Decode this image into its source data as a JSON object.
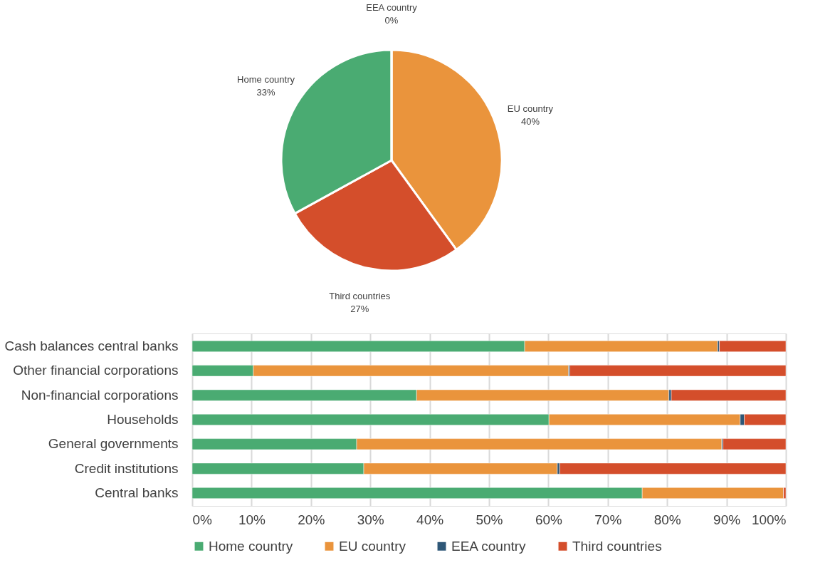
{
  "chart_data": [
    {
      "type": "pie",
      "categories": [
        "EU country",
        "Third countries",
        "Home country",
        "EEA country"
      ],
      "values": [
        40,
        27,
        33,
        0
      ],
      "value_labels": [
        "40%",
        "27%",
        "33%",
        "0%"
      ],
      "colors": [
        "#ea943c",
        "#d44e2b",
        "#4aab72",
        "#2e5777"
      ],
      "legend": false
    },
    {
      "type": "bar",
      "orientation": "horizontal",
      "stacked": true,
      "categories": [
        "Cash balances central banks",
        "Other financial corporations",
        "Non-financial corporations",
        "Households",
        "General governments",
        "Credit institutions",
        "Central banks"
      ],
      "series": [
        {
          "name": "Home country",
          "color": "#4aab72",
          "values": [
            56.0,
            10.3,
            37.8,
            60.1,
            27.7,
            28.9,
            75.8
          ]
        },
        {
          "name": "EU country",
          "color": "#ea943c",
          "values": [
            32.5,
            53.1,
            42.5,
            32.2,
            61.5,
            32.6,
            23.8
          ]
        },
        {
          "name": "EEA country",
          "color": "#2e5777",
          "values": [
            0.3,
            0.2,
            0.4,
            0.7,
            0.2,
            0.4,
            0
          ]
        },
        {
          "name": "Third countries",
          "color": "#d44e2b",
          "values": [
            11.2,
            36.4,
            19.3,
            7.0,
            10.6,
            38.1,
            0.4
          ]
        }
      ],
      "xlim": [
        0,
        100
      ],
      "xticks": [
        {
          "value": 0,
          "label": "0%"
        },
        {
          "value": 10,
          "label": "10%"
        },
        {
          "value": 20,
          "label": "20%"
        },
        {
          "value": 30,
          "label": "30%"
        },
        {
          "value": 40,
          "label": "40%"
        },
        {
          "value": 50,
          "label": "50%"
        },
        {
          "value": 60,
          "label": "60%"
        },
        {
          "value": 70,
          "label": "70%"
        },
        {
          "value": 80,
          "label": "80%"
        },
        {
          "value": 90,
          "label": "90%"
        },
        {
          "value": 100,
          "label": "100%"
        }
      ],
      "grid": "x",
      "legend": "bottom"
    }
  ]
}
